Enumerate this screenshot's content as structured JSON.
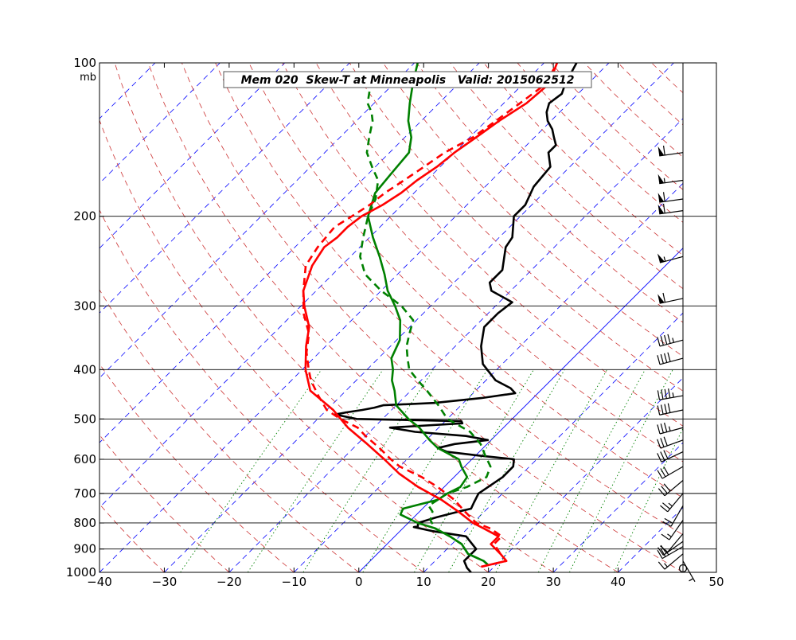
{
  "chart_data": {
    "type": "skew-t",
    "title": "Mem 020  Skew-T at Minneapolis   Valid: 2015062512",
    "ylabel_unit": "mb",
    "xlim": [
      -40,
      50
    ],
    "pressure_range": [
      1000,
      100
    ],
    "x_ticks": [
      -40,
      -30,
      -20,
      -10,
      0,
      10,
      20,
      30,
      40,
      50
    ],
    "pressure_ticks": [
      1000,
      900,
      800,
      700,
      600,
      500,
      400,
      300,
      200,
      100
    ],
    "pressure_tick_labels": [
      "1000",
      "900",
      "800",
      "700",
      "600",
      "500",
      "400",
      "300",
      "200",
      "100"
    ],
    "isotherms_major": [
      0
    ],
    "series": [
      {
        "color": "#000000",
        "style": "solid",
        "points": [
          [
            1000,
            17.3
          ],
          [
            980,
            16.0
          ],
          [
            950,
            14.5
          ],
          [
            900,
            14.5
          ],
          [
            850,
            11.0
          ],
          [
            830,
            5.0
          ],
          [
            815,
            1.5
          ],
          [
            812,
            2.0
          ],
          [
            800,
            1.5
          ],
          [
            780,
            3.5
          ],
          [
            760,
            6.0
          ],
          [
            750,
            7.5
          ],
          [
            730,
            7.0
          ],
          [
            700,
            6.3
          ],
          [
            650,
            7.5
          ],
          [
            620,
            7.5
          ],
          [
            600,
            6.5
          ],
          [
            590,
            0.5
          ],
          [
            580,
            -5.0
          ],
          [
            570,
            -7.0
          ],
          [
            560,
            -5.0
          ],
          [
            550,
            -0.5
          ],
          [
            540,
            -4.5
          ],
          [
            530,
            -13.0
          ],
          [
            520,
            -17.5
          ],
          [
            510,
            -7.0
          ],
          [
            505,
            -7.5
          ],
          [
            500,
            -24.0
          ],
          [
            495,
            -26.0
          ],
          [
            490,
            -28.0
          ],
          [
            485,
            -26.5
          ],
          [
            480,
            -24.5
          ],
          [
            475,
            -23.0
          ],
          [
            470,
            -22.0
          ],
          [
            465,
            -14.5
          ],
          [
            455,
            -8.0
          ],
          [
            445,
            -3.5
          ],
          [
            435,
            -5.0
          ],
          [
            420,
            -8.5
          ],
          [
            390,
            -13.0
          ],
          [
            360,
            -16.0
          ],
          [
            330,
            -18.5
          ],
          [
            320,
            -18.5
          ],
          [
            310,
            -18.5
          ],
          [
            295,
            -18.0
          ],
          [
            280,
            -23.0
          ],
          [
            270,
            -24.5
          ],
          [
            255,
            -24.5
          ],
          [
            230,
            -27.5
          ],
          [
            220,
            -28.0
          ],
          [
            200,
            -31.0
          ],
          [
            190,
            -31.0
          ],
          [
            175,
            -32.5
          ],
          [
            160,
            -33.0
          ],
          [
            150,
            -35.5
          ],
          [
            145,
            -35.5
          ],
          [
            140,
            -37.0
          ],
          [
            135,
            -38.5
          ],
          [
            130,
            -40.5
          ],
          [
            125,
            -42.0
          ],
          [
            120,
            -43.0
          ],
          [
            115,
            -42.5
          ],
          [
            110,
            -43.5
          ],
          [
            100,
            -45.0
          ]
        ]
      },
      {
        "color": "#008000",
        "style": "solid",
        "points": [
          [
            970,
            19.0
          ],
          [
            950,
            17.5
          ],
          [
            920,
            14.0
          ],
          [
            880,
            11.5
          ],
          [
            850,
            8.5
          ],
          [
            820,
            5.0
          ],
          [
            800,
            1.5
          ],
          [
            770,
            -2.5
          ],
          [
            750,
            -3.0
          ],
          [
            720,
            1.0
          ],
          [
            700,
            1.5
          ],
          [
            680,
            2.5
          ],
          [
            650,
            2.0
          ],
          [
            620,
            -0.5
          ],
          [
            600,
            -2.0
          ],
          [
            570,
            -7.0
          ],
          [
            550,
            -9.5
          ],
          [
            520,
            -13.0
          ],
          [
            500,
            -16.0
          ],
          [
            470,
            -20.0
          ],
          [
            440,
            -22.5
          ],
          [
            420,
            -24.5
          ],
          [
            400,
            -26.0
          ],
          [
            380,
            -28.0
          ],
          [
            350,
            -29.5
          ],
          [
            320,
            -32.5
          ],
          [
            300,
            -35.5
          ],
          [
            280,
            -39.0
          ],
          [
            260,
            -42.0
          ],
          [
            240,
            -45.5
          ],
          [
            220,
            -49.5
          ],
          [
            200,
            -53.5
          ],
          [
            180,
            -56.0
          ],
          [
            165,
            -56.5
          ],
          [
            150,
            -57.0
          ],
          [
            140,
            -59.0
          ],
          [
            130,
            -62.0
          ],
          [
            120,
            -64.5
          ],
          [
            110,
            -67.0
          ],
          [
            100,
            -69.5
          ]
        ]
      },
      {
        "color": "#008000",
        "style": "dashed",
        "points": [
          [
            970,
            19.0
          ],
          [
            950,
            17.5
          ],
          [
            920,
            14.0
          ],
          [
            880,
            11.5
          ],
          [
            850,
            8.5
          ],
          [
            820,
            5.0
          ],
          [
            790,
            3.0
          ],
          [
            760,
            2.0
          ],
          [
            740,
            0.5
          ],
          [
            700,
            1.5
          ],
          [
            680,
            3.5
          ],
          [
            650,
            5.0
          ],
          [
            620,
            4.0
          ],
          [
            590,
            1.5
          ],
          [
            560,
            -1.0
          ],
          [
            530,
            -4.5
          ],
          [
            500,
            -10.0
          ],
          [
            470,
            -13.5
          ],
          [
            440,
            -17.5
          ],
          [
            420,
            -20.5
          ],
          [
            400,
            -23.5
          ],
          [
            380,
            -25.5
          ],
          [
            360,
            -27.5
          ],
          [
            340,
            -29.0
          ],
          [
            320,
            -30.5
          ],
          [
            300,
            -34.5
          ],
          [
            280,
            -40.0
          ],
          [
            260,
            -45.0
          ],
          [
            240,
            -48.5
          ],
          [
            220,
            -51.0
          ],
          [
            200,
            -53.5
          ],
          [
            185,
            -55.0
          ],
          [
            170,
            -57.5
          ],
          [
            160,
            -60.5
          ],
          [
            150,
            -63.5
          ],
          [
            140,
            -65.5
          ],
          [
            130,
            -67.5
          ],
          [
            125,
            -69.0
          ],
          [
            120,
            -71.0
          ],
          [
            110,
            -73.5
          ]
        ]
      },
      {
        "color": "#ff0000",
        "style": "solid",
        "points": [
          [
            975,
            18.0
          ],
          [
            950,
            21.0
          ],
          [
            920,
            19.0
          ],
          [
            880,
            16.0
          ],
          [
            850,
            16.0
          ],
          [
            820,
            12.5
          ],
          [
            800,
            10.0
          ],
          [
            760,
            6.0
          ],
          [
            720,
            1.5
          ],
          [
            680,
            -4.0
          ],
          [
            640,
            -9.0
          ],
          [
            600,
            -13.5
          ],
          [
            560,
            -18.5
          ],
          [
            520,
            -24.0
          ],
          [
            480,
            -29.0
          ],
          [
            440,
            -35.5
          ],
          [
            400,
            -39.5
          ],
          [
            360,
            -43.0
          ],
          [
            330,
            -45.5
          ],
          [
            300,
            -49.5
          ],
          [
            280,
            -52.0
          ],
          [
            250,
            -54.5
          ],
          [
            230,
            -55.5
          ],
          [
            220,
            -55.0
          ],
          [
            210,
            -55.0
          ],
          [
            200,
            -54.5
          ],
          [
            190,
            -53.0
          ],
          [
            180,
            -52.0
          ],
          [
            170,
            -51.5
          ],
          [
            160,
            -50.5
          ],
          [
            150,
            -50.0
          ],
          [
            140,
            -49.0
          ],
          [
            130,
            -48.0
          ],
          [
            120,
            -46.5
          ],
          [
            110,
            -46.0
          ],
          [
            100,
            -48.0
          ]
        ]
      },
      {
        "color": "#ff0000",
        "style": "dashed",
        "points": [
          [
            975,
            18.0
          ],
          [
            950,
            21.0
          ],
          [
            920,
            19.0
          ],
          [
            880,
            16.5
          ],
          [
            850,
            16.5
          ],
          [
            820,
            13.5
          ],
          [
            800,
            10.5
          ],
          [
            760,
            7.0
          ],
          [
            720,
            3.5
          ],
          [
            680,
            -1.0
          ],
          [
            650,
            -5.0
          ],
          [
            620,
            -10.0
          ],
          [
            600,
            -12.5
          ],
          [
            570,
            -16.0
          ],
          [
            540,
            -20.0
          ],
          [
            520,
            -22.5
          ],
          [
            500,
            -26.5
          ],
          [
            480,
            -30.0
          ],
          [
            450,
            -33.5
          ],
          [
            420,
            -37.0
          ],
          [
            400,
            -39.0
          ],
          [
            370,
            -42.0
          ],
          [
            340,
            -44.5
          ],
          [
            310,
            -48.5
          ],
          [
            280,
            -52.0
          ],
          [
            250,
            -55.5
          ],
          [
            230,
            -56.5
          ],
          [
            210,
            -57.0
          ],
          [
            200,
            -56.0
          ],
          [
            190,
            -55.0
          ],
          [
            180,
            -54.5
          ],
          [
            170,
            -53.5
          ],
          [
            160,
            -52.5
          ],
          [
            150,
            -51.5
          ],
          [
            140,
            -49.5
          ],
          [
            130,
            -48.5
          ],
          [
            120,
            -47.5
          ],
          [
            110,
            -46.5
          ],
          [
            100,
            -48.0
          ]
        ]
      }
    ],
    "wind_barbs": [
      {
        "pressure": 950,
        "speed_kt": 5,
        "dir_deg": 150
      },
      {
        "pressure": 920,
        "speed_kt": 15,
        "dir_deg": 230
      },
      {
        "pressure": 890,
        "speed_kt": 25,
        "dir_deg": 240
      },
      {
        "pressure": 870,
        "speed_kt": 20,
        "dir_deg": 235
      },
      {
        "pressure": 840,
        "speed_kt": 10,
        "dir_deg": 220
      },
      {
        "pressure": 790,
        "speed_kt": 15,
        "dir_deg": 215
      },
      {
        "pressure": 740,
        "speed_kt": 20,
        "dir_deg": 210
      },
      {
        "pressure": 700,
        "speed_kt": 25,
        "dir_deg": 220
      },
      {
        "pressure": 660,
        "speed_kt": 30,
        "dir_deg": 230
      },
      {
        "pressure": 620,
        "speed_kt": 30,
        "dir_deg": 240
      },
      {
        "pressure": 580,
        "speed_kt": 30,
        "dir_deg": 245
      },
      {
        "pressure": 550,
        "speed_kt": 30,
        "dir_deg": 250
      },
      {
        "pressure": 520,
        "speed_kt": 35,
        "dir_deg": 255
      },
      {
        "pressure": 480,
        "speed_kt": 40,
        "dir_deg": 258
      },
      {
        "pressure": 450,
        "speed_kt": 45,
        "dir_deg": 260
      },
      {
        "pressure": 380,
        "speed_kt": 40,
        "dir_deg": 255
      },
      {
        "pressure": 350,
        "speed_kt": 45,
        "dir_deg": 255
      },
      {
        "pressure": 290,
        "speed_kt": 60,
        "dir_deg": 258
      },
      {
        "pressure": 240,
        "speed_kt": 55,
        "dir_deg": 255
      },
      {
        "pressure": 195,
        "speed_kt": 60,
        "dir_deg": 262
      },
      {
        "pressure": 185,
        "speed_kt": 60,
        "dir_deg": 262
      },
      {
        "pressure": 170,
        "speed_kt": 55,
        "dir_deg": 262
      },
      {
        "pressure": 150,
        "speed_kt": 60,
        "dir_deg": 262
      }
    ],
    "calm_marker_pressure": 1000,
    "reference_lines": {
      "isotherm_color": "#0000ff",
      "dry_adiabat_color": "#cc3333",
      "mixing_ratio_color": "#008000"
    }
  }
}
